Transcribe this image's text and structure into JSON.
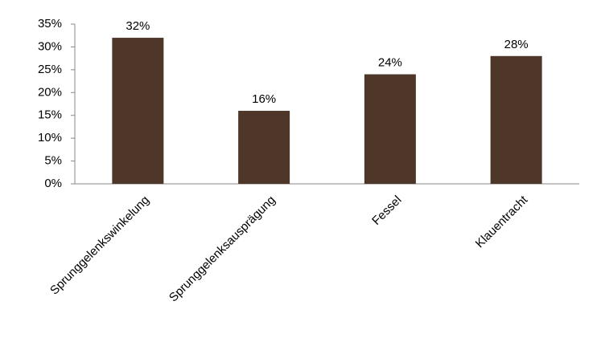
{
  "chart_data": {
    "type": "bar",
    "categories": [
      "Sprunggelenkswinkelung",
      "Sprunggelenksausprägung",
      "Fessel",
      "Klauentracht"
    ],
    "values": [
      32,
      16,
      24,
      28
    ],
    "value_labels": [
      "32%",
      "16%",
      "24%",
      "28%"
    ],
    "color": "#4e3629",
    "ylim": [
      0,
      35
    ],
    "yticks": [
      {
        "value": 0,
        "label": "0%"
      },
      {
        "value": 5,
        "label": "5%"
      },
      {
        "value": 10,
        "label": "10%"
      },
      {
        "value": 15,
        "label": "15%"
      },
      {
        "value": 20,
        "label": "20%"
      },
      {
        "value": 25,
        "label": "25%"
      },
      {
        "value": 30,
        "label": "30%"
      },
      {
        "value": 35,
        "label": "35%"
      }
    ],
    "grid": false
  }
}
